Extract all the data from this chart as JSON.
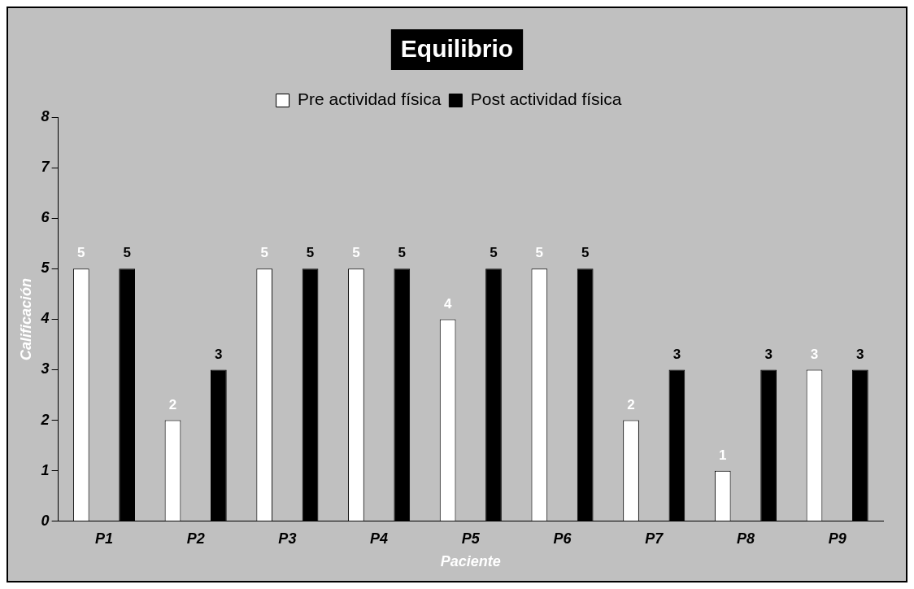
{
  "chart_data": {
    "type": "bar",
    "title": "Equilibrio",
    "xlabel": "Paciente",
    "ylabel": "Calificación",
    "categories": [
      "P1",
      "P2",
      "P3",
      "P4",
      "P5",
      "P6",
      "P7",
      "P8",
      "P9"
    ],
    "series": [
      {
        "name": "Pre actividad física",
        "color": "#ffffff",
        "values": [
          5,
          2,
          5,
          5,
          4,
          5,
          2,
          1,
          3
        ]
      },
      {
        "name": "Post actividad física",
        "color": "#000000",
        "values": [
          5,
          3,
          5,
          5,
          5,
          5,
          3,
          3,
          3
        ]
      }
    ],
    "ylim": [
      0,
      8
    ],
    "yticks": [
      0,
      1,
      2,
      3,
      4,
      5,
      6,
      7,
      8
    ],
    "grid": false,
    "legend": "top",
    "data_labels": true
  }
}
